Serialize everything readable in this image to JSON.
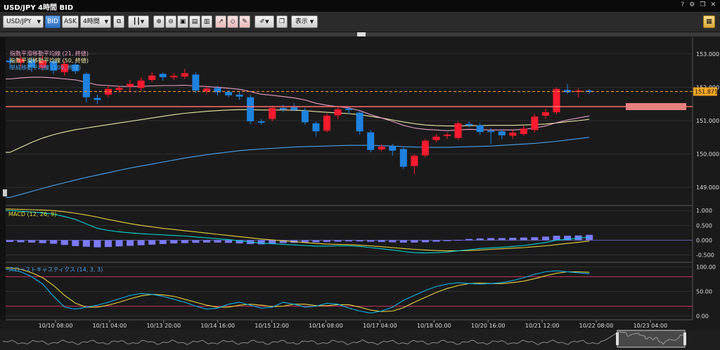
{
  "window": {
    "title": "USD/JPY 4時間 BID",
    "buttons": [
      "?",
      "⚙",
      "❐",
      "✕"
    ]
  },
  "toolbar": {
    "symbol": "USD/JPY",
    "bid_label": "BID",
    "ask_label": "ASK",
    "timeframe": "4時間",
    "display_label": "表示"
  },
  "colors": {
    "up": "#ff1a2e",
    "down": "#1e82e0",
    "ema21": "#e8a0c8",
    "ema50": "#e8e6a6",
    "sma100": "#4aa0e8",
    "price_line": "#f0a030",
    "hline": "#ff6b6b",
    "macd": "#00d0d0",
    "signal": "#e8d040",
    "hist": "#7b7bff",
    "stoch_k": "#00b0e8",
    "stoch_d": "#e8d040",
    "stoch_level": "#c0305a"
  },
  "chart_data": [
    {
      "type": "candlestick",
      "legend": [
        {
          "label": "指数平滑移動平均線 (21, 終値)",
          "color": "#e8a0c8"
        },
        {
          "label": "指数平滑移動平均線 (50, 終値)",
          "color": "#e8e6a6"
        },
        {
          "label": "単純移動平均線 (100, 終値)",
          "color": "#4aa0e8"
        }
      ],
      "ylim": [
        148.5,
        153.5
      ],
      "yticks": [
        "153.000",
        "152.000",
        "151.000",
        "150.000",
        "149.000"
      ],
      "yticks_values": [
        153,
        152,
        151,
        150,
        149
      ],
      "current_price": 151.871,
      "current_price_label": "151.871",
      "hline": 151.42,
      "candles": [
        [
          152.8,
          152.75,
          152.9,
          152.55
        ],
        [
          152.74,
          152.85,
          152.95,
          152.6
        ],
        [
          152.82,
          152.6,
          152.9,
          152.45
        ],
        [
          152.58,
          152.8,
          152.95,
          152.5
        ],
        [
          152.78,
          152.5,
          152.85,
          152.4
        ],
        [
          152.45,
          152.7,
          152.8,
          152.35
        ],
        [
          152.68,
          152.48,
          152.75,
          152.4
        ],
        [
          152.4,
          151.7,
          152.45,
          151.55
        ],
        [
          151.68,
          151.62,
          151.78,
          151.5
        ],
        [
          151.78,
          151.95,
          152.05,
          151.7
        ],
        [
          151.92,
          151.98,
          152.05,
          151.85
        ],
        [
          152.02,
          152.1,
          152.2,
          151.85
        ],
        [
          151.98,
          152.2,
          152.3,
          151.9
        ],
        [
          152.22,
          152.35,
          152.45,
          152.15
        ],
        [
          152.4,
          152.3,
          152.45,
          152.2
        ],
        [
          152.31,
          152.34,
          152.42,
          152.22
        ],
        [
          152.32,
          152.42,
          152.55,
          152.25
        ],
        [
          152.38,
          151.9,
          152.45,
          151.82
        ],
        [
          151.88,
          151.96,
          152.05,
          151.8
        ],
        [
          151.98,
          151.85,
          152.05,
          151.75
        ],
        [
          151.86,
          151.76,
          151.92,
          151.7
        ],
        [
          151.78,
          151.72,
          151.88,
          151.62
        ],
        [
          151.7,
          150.98,
          151.78,
          150.9
        ],
        [
          150.98,
          150.95,
          151.05,
          150.88
        ],
        [
          151.05,
          151.38,
          151.45,
          150.98
        ],
        [
          151.38,
          151.36,
          151.48,
          151.25
        ],
        [
          151.4,
          151.32,
          151.52,
          151.28
        ],
        [
          151.3,
          150.95,
          151.38,
          150.88
        ],
        [
          150.92,
          150.68,
          150.98,
          150.52
        ],
        [
          150.7,
          151.15,
          151.22,
          150.65
        ],
        [
          151.16,
          151.34,
          151.42,
          151.05
        ],
        [
          151.36,
          151.32,
          151.42,
          151.2
        ],
        [
          151.24,
          150.68,
          151.3,
          150.58
        ],
        [
          150.65,
          150.12,
          150.72,
          150.05
        ],
        [
          150.14,
          150.22,
          150.3,
          150.08
        ],
        [
          150.24,
          150.1,
          150.3,
          149.95
        ],
        [
          150.15,
          149.62,
          150.2,
          149.55
        ],
        [
          149.64,
          149.95,
          150.0,
          149.4
        ],
        [
          149.96,
          150.4,
          150.45,
          149.9
        ],
        [
          150.42,
          150.52,
          150.6,
          150.35
        ],
        [
          150.55,
          150.58,
          150.65,
          150.45
        ],
        [
          150.48,
          150.92,
          150.98,
          150.42
        ],
        [
          150.9,
          150.88,
          150.98,
          150.8
        ],
        [
          150.86,
          150.66,
          150.92,
          150.58
        ],
        [
          150.7,
          150.69,
          150.78,
          150.3
        ],
        [
          150.68,
          150.56,
          150.75,
          150.45
        ],
        [
          150.55,
          150.64,
          150.72,
          150.45
        ],
        [
          150.6,
          150.76,
          150.85,
          150.55
        ],
        [
          150.72,
          151.12,
          151.2,
          150.65
        ],
        [
          151.15,
          151.25,
          151.35,
          151.05
        ],
        [
          151.25,
          151.95,
          152.0,
          151.2
        ],
        [
          151.92,
          151.85,
          152.1,
          151.8
        ],
        [
          151.88,
          151.9,
          151.98,
          151.7
        ],
        [
          151.9,
          151.87,
          151.95,
          151.8
        ]
      ],
      "ema21": [
        152.25,
        152.28,
        152.3,
        152.3,
        152.28,
        152.25,
        152.22,
        152.15,
        152.07,
        152.05,
        152.03,
        152.02,
        152.03,
        152.04,
        152.05,
        152.05,
        152.06,
        152.04,
        152.02,
        152.0,
        151.97,
        151.94,
        151.87,
        151.79,
        151.76,
        151.72,
        151.68,
        151.62,
        151.52,
        151.46,
        151.42,
        151.38,
        151.3,
        151.18,
        151.08,
        150.98,
        150.86,
        150.78,
        150.74,
        150.72,
        150.7,
        150.72,
        150.74,
        150.73,
        150.72,
        150.72,
        150.72,
        150.74,
        150.78,
        150.84,
        150.94,
        151.02,
        151.08,
        151.14
      ],
      "ema50": [
        150.05,
        150.2,
        150.35,
        150.48,
        150.58,
        150.66,
        150.73,
        150.78,
        150.83,
        150.88,
        150.93,
        150.98,
        151.03,
        151.08,
        151.13,
        151.18,
        151.22,
        151.25,
        151.28,
        151.3,
        151.32,
        151.33,
        151.33,
        151.32,
        151.32,
        151.32,
        151.31,
        151.3,
        151.27,
        151.25,
        151.23,
        151.21,
        151.18,
        151.13,
        151.08,
        151.02,
        150.96,
        150.91,
        150.87,
        150.85,
        150.84,
        150.84,
        150.85,
        150.85,
        150.86,
        150.86,
        150.86,
        150.87,
        150.88,
        150.9,
        150.93,
        150.97,
        151.0,
        151.04
      ],
      "sma100": [
        148.7,
        148.79,
        148.88,
        148.97,
        149.06,
        149.14,
        149.22,
        149.3,
        149.37,
        149.44,
        149.51,
        149.58,
        149.64,
        149.7,
        149.76,
        149.82,
        149.88,
        149.93,
        149.98,
        150.02,
        150.06,
        150.1,
        150.13,
        150.15,
        150.17,
        150.19,
        150.21,
        150.22,
        150.23,
        150.24,
        150.25,
        150.26,
        150.26,
        150.26,
        150.25,
        150.24,
        150.22,
        150.21,
        150.2,
        150.2,
        150.2,
        150.21,
        150.22,
        150.23,
        150.24,
        150.26,
        150.28,
        150.3,
        150.32,
        150.35,
        150.38,
        150.42,
        150.46,
        150.5
      ]
    },
    {
      "type": "macd",
      "title": "MACD (12, 26, 9)",
      "ylim": [
        -0.7,
        1.1
      ],
      "yticks": [
        "1.000",
        "0.500",
        "0.000",
        "-0.500"
      ],
      "yticks_values": [
        1.0,
        0.5,
        0.0,
        -0.5
      ],
      "macd": [
        1.0,
        0.98,
        0.95,
        0.92,
        0.88,
        0.8,
        0.7,
        0.55,
        0.4,
        0.33,
        0.28,
        0.25,
        0.22,
        0.2,
        0.18,
        0.16,
        0.14,
        0.11,
        0.08,
        0.05,
        0.02,
        -0.02,
        -0.06,
        -0.1,
        -0.12,
        -0.14,
        -0.16,
        -0.18,
        -0.2,
        -0.2,
        -0.19,
        -0.19,
        -0.21,
        -0.25,
        -0.29,
        -0.33,
        -0.38,
        -0.42,
        -0.43,
        -0.42,
        -0.4,
        -0.36,
        -0.32,
        -0.28,
        -0.26,
        -0.24,
        -0.21,
        -0.18,
        -0.13,
        -0.08,
        0.0,
        0.03,
        0.07,
        0.1
      ],
      "signal": [
        1.05,
        1.04,
        1.03,
        1.02,
        1.0,
        0.96,
        0.91,
        0.85,
        0.78,
        0.7,
        0.63,
        0.56,
        0.5,
        0.45,
        0.4,
        0.36,
        0.32,
        0.28,
        0.24,
        0.2,
        0.16,
        0.12,
        0.08,
        0.04,
        0.01,
        -0.02,
        -0.05,
        -0.08,
        -0.11,
        -0.13,
        -0.14,
        -0.15,
        -0.17,
        -0.19,
        -0.22,
        -0.25,
        -0.28,
        -0.31,
        -0.33,
        -0.35,
        -0.36,
        -0.36,
        -0.35,
        -0.33,
        -0.31,
        -0.29,
        -0.27,
        -0.25,
        -0.22,
        -0.19,
        -0.15,
        -0.11,
        -0.07,
        -0.03
      ],
      "histogram": [
        -0.06,
        -0.07,
        -0.08,
        -0.1,
        -0.12,
        -0.16,
        -0.2,
        -0.22,
        -0.24,
        -0.23,
        -0.21,
        -0.19,
        -0.17,
        -0.15,
        -0.13,
        -0.11,
        -0.1,
        -0.09,
        -0.08,
        -0.08,
        -0.09,
        -0.11,
        -0.13,
        -0.14,
        -0.12,
        -0.1,
        -0.09,
        -0.08,
        -0.07,
        -0.06,
        -0.05,
        -0.04,
        -0.04,
        -0.05,
        -0.06,
        -0.07,
        -0.08,
        -0.08,
        -0.07,
        -0.05,
        -0.03,
        0.01,
        0.04,
        0.06,
        0.07,
        0.07,
        0.08,
        0.09,
        0.1,
        0.12,
        0.15,
        0.15,
        0.16,
        0.18
      ]
    },
    {
      "type": "stochastic",
      "title": "スローストキャスティクス (14, 3, 3)",
      "ylim": [
        -5,
        105
      ],
      "yticks": [
        "100.00",
        "50.00",
        "0.00"
      ],
      "yticks_values": [
        100,
        50,
        0
      ],
      "levels": [
        80,
        20
      ],
      "k": [
        95,
        90,
        80,
        65,
        40,
        18,
        14,
        18,
        22,
        28,
        35,
        42,
        46,
        44,
        40,
        34,
        28,
        20,
        14,
        16,
        24,
        28,
        22,
        16,
        18,
        28,
        24,
        18,
        20,
        26,
        24,
        16,
        10,
        6,
        10,
        18,
        32,
        42,
        52,
        60,
        65,
        68,
        66,
        65,
        66,
        68,
        72,
        78,
        85,
        90,
        92,
        90,
        88,
        86
      ],
      "d": [
        98,
        95,
        88,
        78,
        62,
        42,
        26,
        18,
        18,
        22,
        28,
        35,
        41,
        44,
        43,
        40,
        34,
        28,
        22,
        18,
        18,
        22,
        24,
        22,
        19,
        20,
        24,
        24,
        21,
        21,
        23,
        23,
        18,
        12,
        9,
        10,
        17,
        28,
        38,
        48,
        56,
        62,
        66,
        67,
        66,
        66,
        68,
        71,
        76,
        82,
        87,
        90,
        90,
        89
      ]
    }
  ],
  "xaxis": {
    "labels": [
      "10/10 08:00",
      "10/11 04:00",
      "10/13 20:00",
      "10/14 16:00",
      "10/15 12:00",
      "10/16 08:00",
      "10/17 04:00",
      "10/18 00:00",
      "10/20 16:00",
      "10/21 12:00",
      "10/22 08:00",
      "10/23 04:00"
    ]
  }
}
